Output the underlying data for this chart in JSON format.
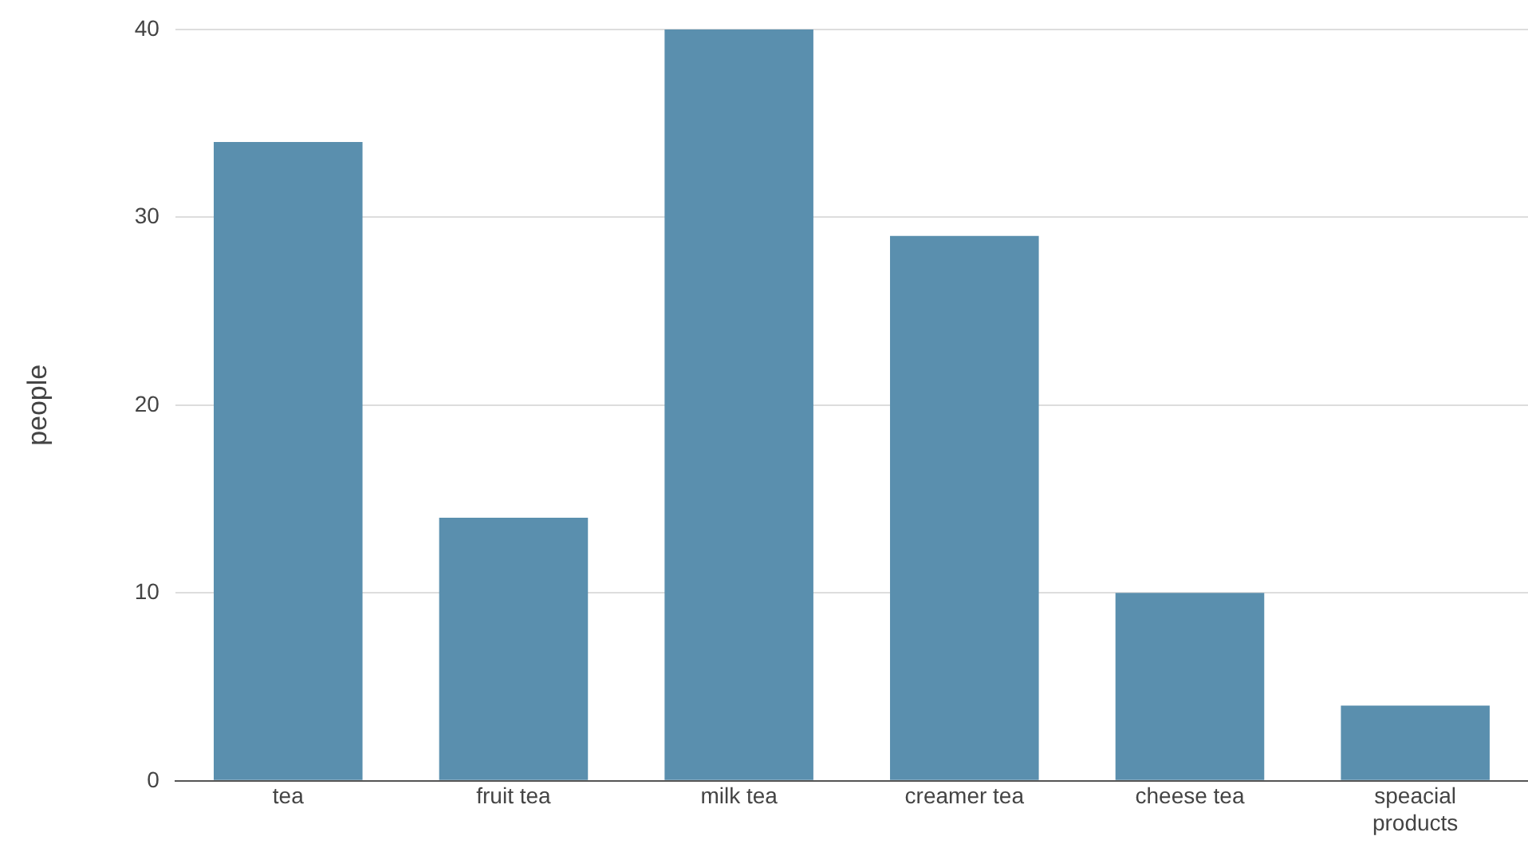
{
  "chart_data": {
    "type": "bar",
    "ylabel": "people",
    "categories": [
      "tea",
      "fruit tea",
      "milk tea",
      "creamer tea",
      "cheese tea",
      "speacial products"
    ],
    "values": [
      34,
      14,
      40,
      29,
      10,
      4
    ],
    "color": "#5a8fae",
    "ylim": [
      0,
      40
    ],
    "yticks": [
      0,
      10,
      20,
      30,
      40
    ],
    "grid": "y",
    "legend": false
  }
}
